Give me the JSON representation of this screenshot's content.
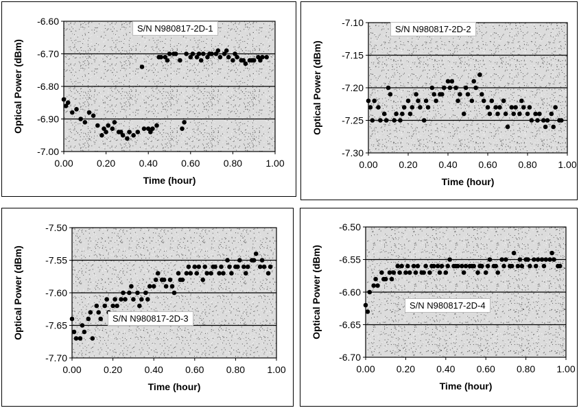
{
  "chart_data": [
    {
      "type": "scatter",
      "annotation": "S/N  N980817-2D-1",
      "xlabel": "Time (hour)",
      "ylabel": "Optical Power (dBm)",
      "xlim": [
        0,
        1
      ],
      "ylim": [
        -7.0,
        -6.6
      ],
      "xticks": [
        "0.00",
        "0.20",
        "0.40",
        "0.60",
        "0.80",
        "1.00"
      ],
      "yticks": [
        "-6.60",
        "-6.70",
        "-6.80",
        "-6.90",
        "-7.00"
      ],
      "grid": "horizontal",
      "x": [
        0.0,
        0.01,
        0.02,
        0.04,
        0.06,
        0.08,
        0.1,
        0.12,
        0.14,
        0.16,
        0.18,
        0.19,
        0.2,
        0.21,
        0.23,
        0.24,
        0.26,
        0.27,
        0.28,
        0.3,
        0.31,
        0.33,
        0.35,
        0.37,
        0.38,
        0.4,
        0.41,
        0.42,
        0.44,
        0.45,
        0.46,
        0.48,
        0.49,
        0.5,
        0.52,
        0.53,
        0.55,
        0.56,
        0.57,
        0.58,
        0.6,
        0.61,
        0.63,
        0.64,
        0.65,
        0.66,
        0.68,
        0.69,
        0.7,
        0.72,
        0.73,
        0.74,
        0.76,
        0.77,
        0.78,
        0.8,
        0.81,
        0.82,
        0.84,
        0.85,
        0.86,
        0.88,
        0.89,
        0.9,
        0.92,
        0.93,
        0.94,
        0.96
      ],
      "y": [
        -6.84,
        -6.86,
        -6.85,
        -6.88,
        -6.87,
        -6.9,
        -6.91,
        -6.88,
        -6.89,
        -6.92,
        -6.95,
        -6.93,
        -6.94,
        -6.92,
        -6.93,
        -6.91,
        -6.94,
        -6.94,
        -6.95,
        -6.96,
        -6.94,
        -6.95,
        -6.94,
        -6.74,
        -6.93,
        -6.93,
        -6.94,
        -6.93,
        -6.92,
        -6.71,
        -6.71,
        -6.71,
        -6.72,
        -6.7,
        -6.7,
        -6.7,
        -6.72,
        -6.93,
        -6.91,
        -6.7,
        -6.71,
        -6.7,
        -6.71,
        -6.7,
        -6.72,
        -6.7,
        -6.71,
        -6.7,
        -6.7,
        -6.7,
        -6.69,
        -6.71,
        -6.7,
        -6.69,
        -6.71,
        -6.72,
        -6.7,
        -6.71,
        -6.72,
        -6.72,
        -6.73,
        -6.72,
        -6.72,
        -6.72,
        -6.71,
        -6.72,
        -6.71,
        -6.71
      ]
    },
    {
      "type": "scatter",
      "annotation": "S/N  N980817-2D-2",
      "xlabel": "Time (hour)",
      "ylabel": "Optical Power (dBm)",
      "xlim": [
        0,
        1
      ],
      "ylim": [
        -7.3,
        -7.1
      ],
      "xticks": [
        "0.00",
        "0.20",
        "0.40",
        "0.60",
        "0.80",
        "1.00"
      ],
      "yticks": [
        "-7.10",
        "-7.15",
        "-7.20",
        "-7.25",
        "-7.30"
      ],
      "grid": "horizontal",
      "x": [
        0.0,
        0.01,
        0.02,
        0.03,
        0.05,
        0.06,
        0.08,
        0.09,
        0.1,
        0.11,
        0.13,
        0.14,
        0.16,
        0.17,
        0.18,
        0.2,
        0.21,
        0.22,
        0.24,
        0.25,
        0.26,
        0.28,
        0.29,
        0.3,
        0.32,
        0.33,
        0.34,
        0.36,
        0.37,
        0.38,
        0.4,
        0.41,
        0.42,
        0.44,
        0.45,
        0.46,
        0.48,
        0.49,
        0.5,
        0.52,
        0.53,
        0.54,
        0.56,
        0.57,
        0.58,
        0.6,
        0.61,
        0.62,
        0.64,
        0.65,
        0.66,
        0.68,
        0.69,
        0.7,
        0.72,
        0.73,
        0.74,
        0.76,
        0.77,
        0.78,
        0.8,
        0.81,
        0.82,
        0.84,
        0.85,
        0.86,
        0.88,
        0.89,
        0.9,
        0.92,
        0.93,
        0.94,
        0.96,
        0.97
      ],
      "y": [
        -7.22,
        -7.23,
        -7.25,
        -7.22,
        -7.23,
        -7.25,
        -7.24,
        -7.25,
        -7.2,
        -7.21,
        -7.25,
        -7.24,
        -7.25,
        -7.24,
        -7.23,
        -7.22,
        -7.24,
        -7.23,
        -7.21,
        -7.22,
        -7.23,
        -7.25,
        -7.22,
        -7.23,
        -7.2,
        -7.21,
        -7.22,
        -7.21,
        -7.21,
        -7.2,
        -7.19,
        -7.2,
        -7.19,
        -7.2,
        -7.22,
        -7.21,
        -7.24,
        -7.2,
        -7.21,
        -7.22,
        -7.19,
        -7.2,
        -7.18,
        -7.21,
        -7.22,
        -7.23,
        -7.24,
        -7.22,
        -7.23,
        -7.24,
        -7.23,
        -7.22,
        -7.24,
        -7.26,
        -7.23,
        -7.24,
        -7.23,
        -7.24,
        -7.22,
        -7.23,
        -7.24,
        -7.23,
        -7.25,
        -7.24,
        -7.25,
        -7.24,
        -7.25,
        -7.26,
        -7.25,
        -7.24,
        -7.26,
        -7.23,
        -7.25,
        -7.25
      ]
    },
    {
      "type": "scatter",
      "annotation": "S/N  N980817-2D-3",
      "xlabel": "Time (hour)",
      "ylabel": "Optical Power (dBm)",
      "xlim": [
        0,
        1
      ],
      "ylim": [
        -7.7,
        -7.5
      ],
      "xticks": [
        "0.00",
        "0.20",
        "0.40",
        "0.60",
        "0.80",
        "1.00"
      ],
      "yticks": [
        "-7.50",
        "-7.55",
        "-7.60",
        "-7.65",
        "-7.70"
      ],
      "grid": "horizontal",
      "x": [
        0.0,
        0.01,
        0.02,
        0.04,
        0.05,
        0.06,
        0.08,
        0.09,
        0.1,
        0.12,
        0.13,
        0.14,
        0.16,
        0.17,
        0.18,
        0.2,
        0.21,
        0.22,
        0.24,
        0.25,
        0.26,
        0.28,
        0.29,
        0.3,
        0.32,
        0.33,
        0.34,
        0.36,
        0.37,
        0.38,
        0.4,
        0.41,
        0.42,
        0.44,
        0.45,
        0.46,
        0.48,
        0.49,
        0.5,
        0.52,
        0.53,
        0.54,
        0.56,
        0.57,
        0.58,
        0.6,
        0.61,
        0.62,
        0.64,
        0.65,
        0.66,
        0.68,
        0.69,
        0.7,
        0.72,
        0.73,
        0.74,
        0.76,
        0.77,
        0.78,
        0.8,
        0.81,
        0.82,
        0.84,
        0.85,
        0.86,
        0.88,
        0.89,
        0.9,
        0.92,
        0.93,
        0.94,
        0.96,
        0.97
      ],
      "y": [
        -7.64,
        -7.66,
        -7.67,
        -7.67,
        -7.65,
        -7.66,
        -7.64,
        -7.63,
        -7.67,
        -7.62,
        -7.63,
        -7.64,
        -7.62,
        -7.61,
        -7.63,
        -7.62,
        -7.61,
        -7.62,
        -7.61,
        -7.6,
        -7.61,
        -7.6,
        -7.59,
        -7.61,
        -7.6,
        -7.62,
        -7.61,
        -7.6,
        -7.61,
        -7.59,
        -7.59,
        -7.58,
        -7.57,
        -7.58,
        -7.58,
        -7.59,
        -7.58,
        -7.59,
        -7.6,
        -7.57,
        -7.58,
        -7.58,
        -7.57,
        -7.56,
        -7.57,
        -7.56,
        -7.57,
        -7.56,
        -7.58,
        -7.56,
        -7.57,
        -7.57,
        -7.56,
        -7.56,
        -7.57,
        -7.56,
        -7.57,
        -7.55,
        -7.56,
        -7.57,
        -7.56,
        -7.56,
        -7.55,
        -7.56,
        -7.57,
        -7.56,
        -7.55,
        -7.55,
        -7.54,
        -7.56,
        -7.55,
        -7.56,
        -7.57,
        -7.56
      ]
    },
    {
      "type": "scatter",
      "annotation": "S/N  N980817-2D-4",
      "xlabel": "Time (hour)",
      "ylabel": "Optical Power (dBm)",
      "xlim": [
        0,
        1
      ],
      "ylim": [
        -6.7,
        -6.5
      ],
      "xticks": [
        "0.00",
        "0.20",
        "0.40",
        "0.60",
        "0.80",
        "1.00"
      ],
      "yticks": [
        "-6.50",
        "-6.55",
        "-6.60",
        "-6.65",
        "-6.70"
      ],
      "grid": "horizontal",
      "x": [
        0.0,
        0.01,
        0.02,
        0.04,
        0.05,
        0.06,
        0.08,
        0.09,
        0.1,
        0.12,
        0.13,
        0.14,
        0.16,
        0.17,
        0.18,
        0.2,
        0.21,
        0.22,
        0.24,
        0.25,
        0.26,
        0.28,
        0.29,
        0.3,
        0.32,
        0.33,
        0.34,
        0.36,
        0.37,
        0.38,
        0.4,
        0.41,
        0.42,
        0.44,
        0.45,
        0.46,
        0.48,
        0.49,
        0.5,
        0.52,
        0.53,
        0.54,
        0.56,
        0.57,
        0.58,
        0.6,
        0.61,
        0.62,
        0.64,
        0.65,
        0.66,
        0.68,
        0.69,
        0.7,
        0.72,
        0.73,
        0.74,
        0.76,
        0.77,
        0.78,
        0.8,
        0.81,
        0.82,
        0.84,
        0.85,
        0.86,
        0.88,
        0.89,
        0.9,
        0.92,
        0.93,
        0.94,
        0.96,
        0.97
      ],
      "y": [
        -6.62,
        -6.63,
        -6.6,
        -6.59,
        -6.58,
        -6.59,
        -6.57,
        -6.58,
        -6.58,
        -6.57,
        -6.58,
        -6.57,
        -6.56,
        -6.57,
        -6.56,
        -6.57,
        -6.56,
        -6.57,
        -6.56,
        -6.57,
        -6.56,
        -6.57,
        -6.57,
        -6.56,
        -6.57,
        -6.56,
        -6.56,
        -6.56,
        -6.57,
        -6.56,
        -6.57,
        -6.56,
        -6.55,
        -6.56,
        -6.56,
        -6.56,
        -6.56,
        -6.57,
        -6.56,
        -6.56,
        -6.56,
        -6.56,
        -6.57,
        -6.56,
        -6.56,
        -6.57,
        -6.56,
        -6.55,
        -6.56,
        -6.56,
        -6.57,
        -6.55,
        -6.56,
        -6.55,
        -6.56,
        -6.56,
        -6.54,
        -6.56,
        -6.55,
        -6.56,
        -6.55,
        -6.55,
        -6.56,
        -6.55,
        -6.56,
        -6.55,
        -6.55,
        -6.56,
        -6.55,
        -6.55,
        -6.54,
        -6.55,
        -6.56,
        -6.56
      ]
    }
  ]
}
